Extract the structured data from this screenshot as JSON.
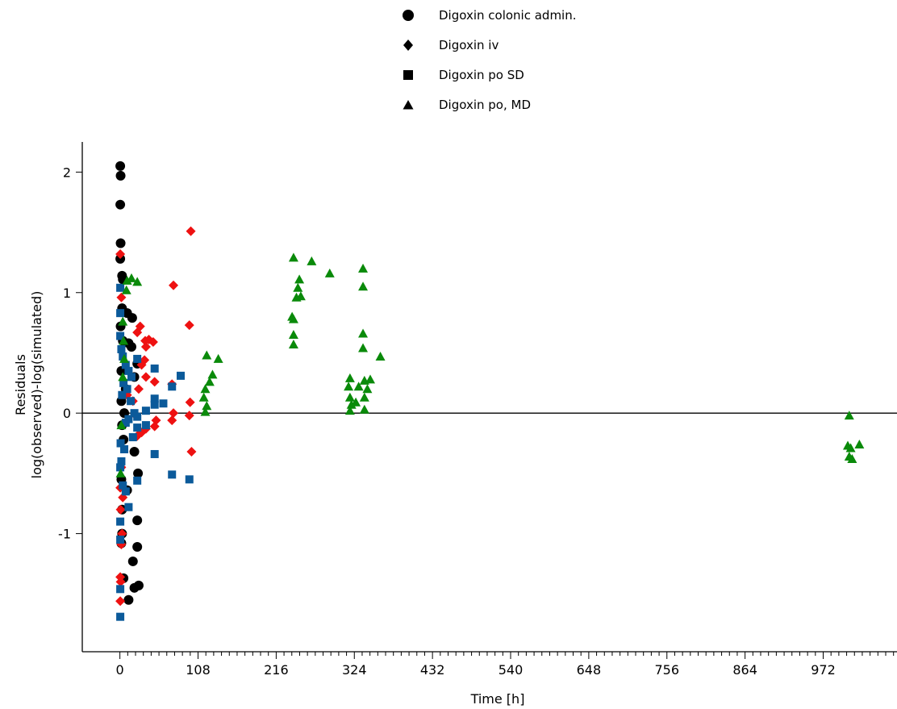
{
  "chart_data": {
    "type": "scatter",
    "xlabel": "Time [h]",
    "ylabel": [
      "Residuals",
      "log(observed)-log(simulated)"
    ],
    "xlim": [
      -52,
      1074
    ],
    "ylim": [
      -1.98,
      2.25
    ],
    "xticks": [
      0,
      108,
      216,
      324,
      432,
      540,
      648,
      756,
      864,
      972
    ],
    "yticks": [
      -1,
      0,
      1,
      2
    ],
    "xtick_labels": [
      "0",
      "108",
      "216",
      "324",
      "432",
      "540",
      "648",
      "756",
      "864",
      "972"
    ],
    "ytick_labels": [
      "-1",
      "0",
      "1",
      "2"
    ],
    "reference_line_y": 0,
    "legend_position": "top-center",
    "series": [
      {
        "name": "Digoxin colonic admin.",
        "marker": "circle",
        "color": "#000000",
        "points": [
          [
            0.5,
            2.05
          ],
          [
            1.0,
            1.97
          ],
          [
            0.5,
            1.73
          ],
          [
            1.0,
            1.41
          ],
          [
            0.5,
            1.28
          ],
          [
            3.0,
            1.14
          ],
          [
            4.0,
            1.11
          ],
          [
            3.0,
            0.87
          ],
          [
            10.0,
            0.83
          ],
          [
            17.0,
            0.79
          ],
          [
            1.0,
            0.72
          ],
          [
            4.0,
            0.6
          ],
          [
            12.0,
            0.58
          ],
          [
            16.0,
            0.55
          ],
          [
            24.0,
            0.41
          ],
          [
            2.0,
            0.35
          ],
          [
            20.0,
            0.3
          ],
          [
            8.0,
            0.2
          ],
          [
            2.0,
            0.1
          ],
          [
            6.0,
            0.0
          ],
          [
            3.0,
            -0.1
          ],
          [
            5.0,
            -0.22
          ],
          [
            20.0,
            -0.32
          ],
          [
            25.0,
            -0.5
          ],
          [
            2.0,
            -0.55
          ],
          [
            10.0,
            -0.64
          ],
          [
            3.0,
            -0.8
          ],
          [
            24.0,
            -0.89
          ],
          [
            3.0,
            -1.0
          ],
          [
            2.0,
            -1.08
          ],
          [
            24.0,
            -1.11
          ],
          [
            18.0,
            -1.23
          ],
          [
            5.0,
            -1.37
          ],
          [
            20.0,
            -1.45
          ],
          [
            26.0,
            -1.43
          ],
          [
            12.0,
            -1.55
          ]
        ]
      },
      {
        "name": "Digoxin iv",
        "marker": "diamond",
        "color": "#ee1111",
        "points": [
          [
            98,
            1.51
          ],
          [
            74,
            1.06
          ],
          [
            96,
            0.73
          ],
          [
            0.5,
            1.32
          ],
          [
            2,
            0.96
          ],
          [
            24,
            0.67
          ],
          [
            35,
            0.6
          ],
          [
            40,
            0.61
          ],
          [
            46,
            0.59
          ],
          [
            34,
            0.44
          ],
          [
            30,
            0.4
          ],
          [
            36,
            0.55
          ],
          [
            26,
            0.2
          ],
          [
            48,
            0.26
          ],
          [
            36,
            0.3
          ],
          [
            72,
            0.24
          ],
          [
            97,
            0.09
          ],
          [
            74,
            0.0
          ],
          [
            72,
            -0.06
          ],
          [
            96,
            -0.02
          ],
          [
            50,
            -0.06
          ],
          [
            48,
            -0.11
          ],
          [
            36,
            -0.13
          ],
          [
            30,
            -0.16
          ],
          [
            24,
            -0.19
          ],
          [
            99,
            -0.32
          ],
          [
            2,
            -0.45
          ],
          [
            0.5,
            -0.62
          ],
          [
            4,
            -0.7
          ],
          [
            1,
            -0.8
          ],
          [
            3,
            -1.0
          ],
          [
            2,
            -1.09
          ],
          [
            0.5,
            -1.36
          ],
          [
            1,
            -1.4
          ],
          [
            0.5,
            -1.56
          ],
          [
            18,
            0.1
          ],
          [
            10,
            0.15
          ],
          [
            22,
            -0.02
          ],
          [
            28,
            0.72
          ]
        ]
      },
      {
        "name": "Digoxin po SD",
        "marker": "square",
        "color": "#0b5a9a",
        "points": [
          [
            0.5,
            1.04
          ],
          [
            0.5,
            0.83
          ],
          [
            0.5,
            0.64
          ],
          [
            2,
            0.53
          ],
          [
            4,
            0.47
          ],
          [
            8,
            0.4
          ],
          [
            12,
            0.35
          ],
          [
            16,
            0.3
          ],
          [
            24,
            0.45
          ],
          [
            48,
            0.37
          ],
          [
            84,
            0.31
          ],
          [
            72,
            0.22
          ],
          [
            48,
            0.12
          ],
          [
            60,
            0.08
          ],
          [
            48,
            0.07
          ],
          [
            36,
            0.02
          ],
          [
            24,
            -0.03
          ],
          [
            12,
            -0.05
          ],
          [
            8,
            -0.08
          ],
          [
            36,
            -0.1
          ],
          [
            24,
            -0.12
          ],
          [
            48,
            -0.34
          ],
          [
            72,
            -0.51
          ],
          [
            96,
            -0.55
          ],
          [
            24,
            -0.56
          ],
          [
            12,
            -0.78
          ],
          [
            8,
            -0.65
          ],
          [
            4,
            -0.6
          ],
          [
            2,
            -0.4
          ],
          [
            1,
            -0.25
          ],
          [
            0.5,
            -0.45
          ],
          [
            0.5,
            -0.9
          ],
          [
            0.5,
            -1.05
          ],
          [
            0.5,
            -1.46
          ],
          [
            0.5,
            -1.69
          ],
          [
            3,
            0.15
          ],
          [
            5,
            0.25
          ],
          [
            10,
            0.2
          ],
          [
            15,
            0.1
          ],
          [
            18,
            -0.2
          ],
          [
            6,
            -0.3
          ],
          [
            20,
            0.0
          ]
        ]
      },
      {
        "name": "Digoxin po, MD",
        "marker": "triangle",
        "color": "#0a8a0a",
        "points": [
          [
            10,
            1.1
          ],
          [
            16,
            1.12
          ],
          [
            24,
            1.09
          ],
          [
            9,
            1.02
          ],
          [
            4,
            0.76
          ],
          [
            5,
            0.6
          ],
          [
            120,
            0.48
          ],
          [
            136,
            0.45
          ],
          [
            128,
            0.32
          ],
          [
            124,
            0.26
          ],
          [
            118,
            0.2
          ],
          [
            116,
            0.13
          ],
          [
            120,
            0.06
          ],
          [
            118,
            0.01
          ],
          [
            240,
            1.29
          ],
          [
            248,
            1.11
          ],
          [
            246,
            1.04
          ],
          [
            244,
            0.96
          ],
          [
            250,
            0.97
          ],
          [
            265,
            1.26
          ],
          [
            290,
            1.16
          ],
          [
            238,
            0.8
          ],
          [
            240,
            0.78
          ],
          [
            240,
            0.65
          ],
          [
            240,
            0.57
          ],
          [
            336,
            1.2
          ],
          [
            336,
            1.05
          ],
          [
            336,
            0.66
          ],
          [
            336,
            0.54
          ],
          [
            360,
            0.47
          ],
          [
            318,
            0.29
          ],
          [
            316,
            0.22
          ],
          [
            346,
            0.28
          ],
          [
            338,
            0.27
          ],
          [
            330,
            0.22
          ],
          [
            342,
            0.2
          ],
          [
            318,
            0.13
          ],
          [
            338,
            0.13
          ],
          [
            326,
            0.09
          ],
          [
            320,
            0.07
          ],
          [
            318,
            0.02
          ],
          [
            338,
            0.03
          ],
          [
            1008,
            -0.02
          ],
          [
            1006,
            -0.27
          ],
          [
            1010,
            -0.29
          ],
          [
            1022,
            -0.26
          ],
          [
            1008,
            -0.36
          ],
          [
            1012,
            -0.38
          ],
          [
            4,
            0.3
          ],
          [
            2,
            -0.1
          ],
          [
            1,
            -0.5
          ],
          [
            6,
            0.45
          ]
        ]
      }
    ]
  }
}
